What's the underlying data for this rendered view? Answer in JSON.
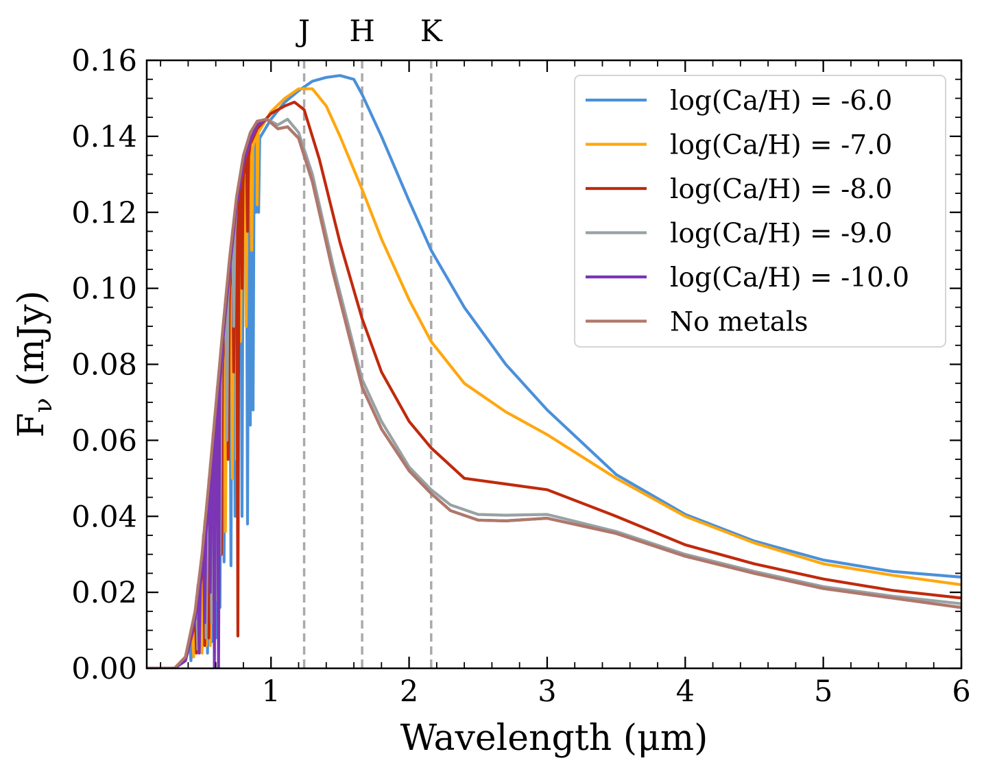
{
  "chart_data": {
    "type": "line",
    "title": "",
    "xlabel": "Wavelength (μm)",
    "ylabel_main": "F",
    "ylabel_sub": "ν",
    "ylabel_unit": " (mJy)",
    "xlim": [
      0.1,
      6.0
    ],
    "ylim": [
      0.0,
      0.16
    ],
    "grid": false,
    "legend_position": "top-right",
    "x_ticks": [
      {
        "value": 1,
        "label": "1"
      },
      {
        "value": 2,
        "label": "2"
      },
      {
        "value": 3,
        "label": "3"
      },
      {
        "value": 4,
        "label": "4"
      },
      {
        "value": 5,
        "label": "5"
      },
      {
        "value": 6,
        "label": "6"
      }
    ],
    "y_ticks": [
      {
        "value": 0.0,
        "label": "0.00"
      },
      {
        "value": 0.02,
        "label": "0.02"
      },
      {
        "value": 0.04,
        "label": "0.04"
      },
      {
        "value": 0.06,
        "label": "0.06"
      },
      {
        "value": 0.08,
        "label": "0.08"
      },
      {
        "value": 0.1,
        "label": "0.10"
      },
      {
        "value": 0.12,
        "label": "0.12"
      },
      {
        "value": 0.14,
        "label": "0.14"
      },
      {
        "value": 0.16,
        "label": "0.16"
      }
    ],
    "bands": [
      {
        "label": "J",
        "x": 1.24,
        "color": "#aaaaaa"
      },
      {
        "label": "H",
        "x": 1.66,
        "color": "#aaaaaa"
      },
      {
        "label": "K",
        "x": 2.16,
        "color": "#aaaaaa"
      }
    ],
    "series": [
      {
        "name": "log(Ca/H) = -6.0",
        "color": "#4a90d9",
        "x": [
          0.1,
          0.3,
          0.38,
          0.45,
          0.5,
          0.55,
          0.6,
          0.65,
          0.7,
          0.75,
          0.8,
          0.85,
          0.9,
          1.0,
          1.1,
          1.2,
          1.3,
          1.4,
          1.5,
          1.6,
          1.66,
          1.8,
          2.0,
          2.16,
          2.4,
          2.7,
          3.0,
          3.5,
          4.0,
          4.5,
          5.0,
          5.5,
          6.0
        ],
        "y": [
          0.0,
          0.0,
          0.002,
          0.01,
          0.022,
          0.038,
          0.056,
          0.075,
          0.094,
          0.113,
          0.126,
          0.134,
          0.139,
          0.1445,
          0.149,
          0.152,
          0.1545,
          0.1555,
          0.156,
          0.155,
          0.151,
          0.14,
          0.123,
          0.11,
          0.095,
          0.08,
          0.068,
          0.051,
          0.0405,
          0.0335,
          0.0285,
          0.0255,
          0.024
        ],
        "glitches": [
          {
            "x": 0.42,
            "y": 0.002
          },
          {
            "x": 0.5,
            "y": 0.005
          },
          {
            "x": 0.54,
            "y": 0.004
          },
          {
            "x": 0.57,
            "y": 0.007
          },
          {
            "x": 0.6,
            "y": 0.008
          },
          {
            "x": 0.63,
            "y": 0.016
          },
          {
            "x": 0.66,
            "y": 0.028
          },
          {
            "x": 0.71,
            "y": 0.027
          },
          {
            "x": 0.74,
            "y": 0.04
          },
          {
            "x": 0.79,
            "y": 0.04
          },
          {
            "x": 0.83,
            "y": 0.038
          },
          {
            "x": 0.85,
            "y": 0.064
          },
          {
            "x": 0.87,
            "y": 0.068
          },
          {
            "x": 0.89,
            "y": 0.12
          },
          {
            "x": 0.91,
            "y": 0.12
          }
        ]
      },
      {
        "name": "log(Ca/H) = -7.0",
        "color": "#ffa70f",
        "x": [
          0.1,
          0.3,
          0.38,
          0.45,
          0.5,
          0.55,
          0.6,
          0.65,
          0.7,
          0.75,
          0.8,
          0.85,
          0.9,
          1.0,
          1.1,
          1.2,
          1.3,
          1.4,
          1.5,
          1.66,
          1.8,
          2.0,
          2.16,
          2.4,
          2.7,
          3.0,
          3.5,
          4.0,
          4.5,
          5.0,
          5.5,
          6.0
        ],
        "y": [
          0.0,
          0.0,
          0.002,
          0.011,
          0.024,
          0.04,
          0.058,
          0.077,
          0.097,
          0.115,
          0.128,
          0.136,
          0.141,
          0.1465,
          0.15,
          0.1525,
          0.1525,
          0.148,
          0.14,
          0.126,
          0.113,
          0.097,
          0.086,
          0.075,
          0.0675,
          0.0615,
          0.05,
          0.04,
          0.033,
          0.0275,
          0.0245,
          0.022
        ],
        "glitches": [
          {
            "x": 0.44,
            "y": 0.003
          },
          {
            "x": 0.5,
            "y": 0.004
          },
          {
            "x": 0.53,
            "y": 0.006
          },
          {
            "x": 0.56,
            "y": 0.006
          },
          {
            "x": 0.59,
            "y": 0.01
          },
          {
            "x": 0.62,
            "y": 0.02
          },
          {
            "x": 0.67,
            "y": 0.036
          },
          {
            "x": 0.72,
            "y": 0.05
          },
          {
            "x": 0.75,
            "y": 0.055
          },
          {
            "x": 0.78,
            "y": 0.086
          },
          {
            "x": 0.82,
            "y": 0.09
          },
          {
            "x": 0.86,
            "y": 0.11
          },
          {
            "x": 0.9,
            "y": 0.122
          }
        ]
      },
      {
        "name": "log(Ca/H) = -8.0",
        "color": "#c02a0d",
        "x": [
          0.1,
          0.3,
          0.38,
          0.45,
          0.5,
          0.55,
          0.6,
          0.65,
          0.7,
          0.75,
          0.8,
          0.85,
          0.9,
          1.0,
          1.1,
          1.17,
          1.24,
          1.35,
          1.5,
          1.66,
          1.8,
          2.0,
          2.16,
          2.4,
          2.7,
          3.0,
          3.5,
          4.0,
          4.5,
          5.0,
          5.5,
          6.0
        ],
        "y": [
          0.0,
          0.0,
          0.002,
          0.012,
          0.026,
          0.043,
          0.061,
          0.081,
          0.1,
          0.118,
          0.13,
          0.138,
          0.142,
          0.146,
          0.148,
          0.149,
          0.147,
          0.134,
          0.112,
          0.092,
          0.078,
          0.065,
          0.058,
          0.05,
          0.0485,
          0.047,
          0.04,
          0.0325,
          0.0275,
          0.0235,
          0.0205,
          0.0185
        ],
        "glitches": [
          {
            "x": 0.46,
            "y": 0.004
          },
          {
            "x": 0.52,
            "y": 0.006
          },
          {
            "x": 0.55,
            "y": 0.008
          },
          {
            "x": 0.58,
            "y": 0.012
          },
          {
            "x": 0.61,
            "y": 0.02
          },
          {
            "x": 0.64,
            "y": 0.03
          },
          {
            "x": 0.69,
            "y": 0.055
          },
          {
            "x": 0.73,
            "y": 0.078
          },
          {
            "x": 0.76,
            "y": 0.0085
          },
          {
            "x": 0.79,
            "y": 0.1
          },
          {
            "x": 0.83,
            "y": 0.115
          }
        ]
      },
      {
        "name": "log(Ca/H) = -9.0",
        "color": "#98a2a4",
        "x": [
          0.1,
          0.3,
          0.38,
          0.45,
          0.5,
          0.55,
          0.6,
          0.65,
          0.7,
          0.75,
          0.8,
          0.85,
          0.9,
          0.97,
          1.05,
          1.12,
          1.2,
          1.3,
          1.45,
          1.66,
          1.8,
          2.0,
          2.16,
          2.3,
          2.5,
          2.7,
          3.0,
          3.5,
          4.0,
          4.5,
          5.0,
          5.5,
          6.0
        ],
        "y": [
          0.0,
          0.0,
          0.002,
          0.013,
          0.028,
          0.046,
          0.066,
          0.086,
          0.105,
          0.122,
          0.133,
          0.139,
          0.143,
          0.1445,
          0.143,
          0.1445,
          0.141,
          0.13,
          0.106,
          0.076,
          0.065,
          0.053,
          0.047,
          0.043,
          0.0405,
          0.0403,
          0.0405,
          0.036,
          0.03,
          0.0255,
          0.0215,
          0.019,
          0.017
        ],
        "glitches": [
          {
            "x": 0.47,
            "y": 0.005
          },
          {
            "x": 0.53,
            "y": 0.008
          },
          {
            "x": 0.57,
            "y": 0.012
          },
          {
            "x": 0.6,
            "y": 0.018
          },
          {
            "x": 0.63,
            "y": 0.03
          },
          {
            "x": 0.68,
            "y": 0.06
          },
          {
            "x": 0.73,
            "y": 0.09
          }
        ]
      },
      {
        "name": "log(Ca/H) = -10.0",
        "color": "#7b35b5",
        "x": [
          0.1,
          0.3,
          0.38,
          0.45,
          0.5,
          0.55,
          0.6,
          0.65,
          0.7,
          0.75,
          0.8,
          0.85,
          0.9,
          0.97,
          1.05,
          1.12,
          1.2,
          1.3,
          1.45,
          1.66,
          1.8,
          2.0,
          2.16,
          2.3,
          2.5,
          2.7,
          3.0,
          3.5,
          4.0,
          4.5,
          5.0,
          5.5,
          6.0
        ],
        "y": [
          0.0,
          0.0,
          0.002,
          0.013,
          0.028,
          0.046,
          0.066,
          0.086,
          0.105,
          0.122,
          0.133,
          0.139,
          0.143,
          0.1445,
          0.142,
          0.1425,
          0.1395,
          0.128,
          0.104,
          0.074,
          0.063,
          0.052,
          0.046,
          0.0415,
          0.039,
          0.0388,
          0.0395,
          0.0355,
          0.0295,
          0.025,
          0.021,
          0.0185,
          0.016
        ],
        "glitches": [
          {
            "x": 0.48,
            "y": 0.004
          },
          {
            "x": 0.52,
            "y": 0.012
          },
          {
            "x": 0.56,
            "y": 0.02
          },
          {
            "x": 0.59,
            "y": 0.0
          },
          {
            "x": 0.62,
            "y": 0.0
          }
        ]
      },
      {
        "name": "No metals",
        "color": "#b07868",
        "x": [
          0.1,
          0.3,
          0.38,
          0.45,
          0.5,
          0.55,
          0.6,
          0.65,
          0.7,
          0.75,
          0.8,
          0.85,
          0.9,
          0.97,
          1.05,
          1.12,
          1.2,
          1.3,
          1.45,
          1.66,
          1.8,
          2.0,
          2.16,
          2.3,
          2.5,
          2.7,
          3.0,
          3.5,
          4.0,
          4.5,
          5.0,
          5.5,
          6.0
        ],
        "y": [
          0.0,
          0.0,
          0.003,
          0.015,
          0.03,
          0.049,
          0.069,
          0.089,
          0.108,
          0.124,
          0.135,
          0.141,
          0.144,
          0.1445,
          0.142,
          0.1425,
          0.1395,
          0.128,
          0.104,
          0.074,
          0.063,
          0.052,
          0.046,
          0.0415,
          0.039,
          0.0388,
          0.0395,
          0.0355,
          0.0295,
          0.025,
          0.021,
          0.0185,
          0.016
        ],
        "glitches": []
      }
    ]
  }
}
